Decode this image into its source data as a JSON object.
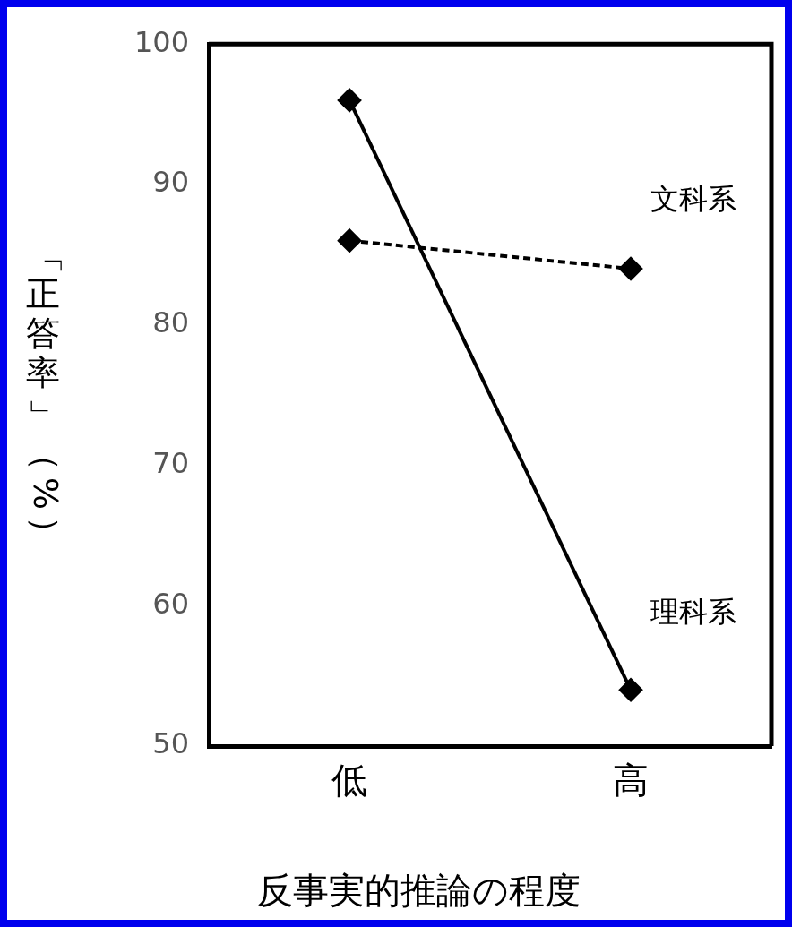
{
  "chart_data": {
    "type": "line",
    "xlabel": "反事実的推論の程度",
    "ylabel": "「正答率」（%）",
    "categories": [
      "低",
      "高"
    ],
    "series": [
      {
        "name": "文科系",
        "color": "#000000",
        "values": [
          86,
          84
        ],
        "line_style": "dashed"
      },
      {
        "name": "理科系",
        "color": "#000000",
        "values": [
          96,
          54
        ],
        "line_style": "solid"
      }
    ],
    "ylim": [
      50,
      100
    ],
    "yticks": [
      50,
      60,
      70,
      80,
      90,
      100
    ],
    "grid": false,
    "legend": false,
    "marker": "diamond"
  }
}
